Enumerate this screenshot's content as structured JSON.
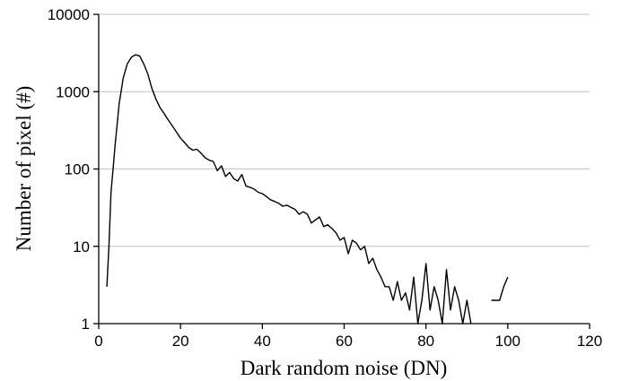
{
  "chart_data": {
    "type": "line",
    "title": "",
    "xlabel": "Dark random noise (DN)",
    "ylabel": "Number of pixel (#)",
    "xlim": [
      0,
      120
    ],
    "ylim": [
      1,
      10000
    ],
    "yscale": "log",
    "grid": "horizontal",
    "legend": "none",
    "x_ticks": [
      0,
      20,
      40,
      60,
      80,
      100,
      120
    ],
    "y_ticks": [
      1,
      10,
      100,
      1000,
      10000
    ],
    "x_tick_labels": [
      "0",
      "20",
      "40",
      "60",
      "80",
      "100",
      "120"
    ],
    "y_tick_labels": [
      "1",
      "10",
      "100",
      "1000",
      "10000"
    ],
    "colors": {
      "line": "#000000",
      "grid": "#c0c0c0",
      "axis": "#000000"
    },
    "series": [
      {
        "x": [
          2,
          2.5,
          3,
          3.5,
          4,
          5,
          6,
          7,
          8,
          9,
          10,
          11,
          12,
          13,
          14,
          15,
          16,
          17,
          18,
          19,
          20,
          21,
          22,
          23,
          24,
          25,
          26,
          27,
          28,
          29,
          30,
          31,
          32,
          33,
          34,
          35,
          36,
          37,
          38,
          39,
          40,
          41,
          42,
          43,
          44,
          45,
          46,
          47,
          48,
          49,
          50,
          51,
          52,
          53,
          54,
          55,
          56,
          57,
          58,
          59,
          60,
          61,
          62,
          63,
          64,
          65,
          66,
          67,
          68,
          69,
          70,
          71,
          72,
          73,
          74,
          75,
          76,
          77,
          78,
          79,
          80,
          81,
          82,
          83,
          84,
          85,
          86,
          87,
          88,
          89,
          90,
          91
        ],
        "y": [
          3,
          10,
          50,
          100,
          200,
          700,
          1500,
          2300,
          2800,
          3000,
          2900,
          2300,
          1700,
          1100,
          800,
          620,
          520,
          430,
          360,
          300,
          250,
          220,
          190,
          175,
          180,
          160,
          140,
          130,
          125,
          95,
          110,
          80,
          90,
          75,
          70,
          85,
          60,
          58,
          55,
          50,
          48,
          44,
          40,
          38,
          36,
          33,
          34,
          32,
          30,
          26,
          28,
          26,
          20,
          22,
          24,
          18,
          19,
          17,
          15,
          12,
          13,
          8,
          12,
          11,
          9,
          10,
          6,
          7,
          5,
          4,
          3,
          3,
          2,
          3.5,
          2,
          2.5,
          1.5,
          4,
          1,
          2,
          6,
          1.5,
          3,
          2,
          1,
          5,
          1.5,
          3,
          2,
          1,
          2,
          1
        ]
      },
      {
        "x": [
          96,
          97,
          98,
          99,
          100
        ],
        "y": [
          2,
          2,
          2,
          3,
          4
        ]
      }
    ]
  }
}
